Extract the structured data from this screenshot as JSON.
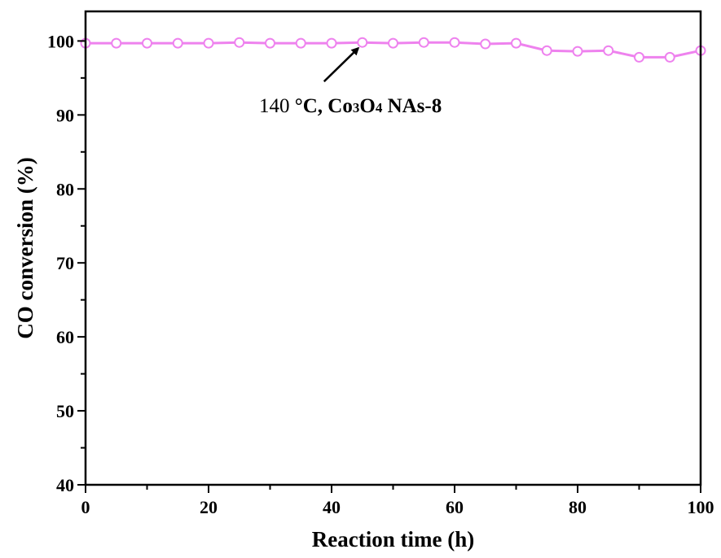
{
  "chart_data": {
    "type": "line",
    "title": "",
    "xlabel": "Reaction time (h)",
    "ylabel": "CO conversion (%)",
    "xlim": [
      0,
      100
    ],
    "ylim": [
      40,
      104
    ],
    "xticks": [
      0,
      20,
      40,
      60,
      80,
      100
    ],
    "yticks": [
      40,
      50,
      60,
      70,
      80,
      90,
      100
    ],
    "grid": false,
    "legend": "none",
    "series": [
      {
        "color": "#ee82ee",
        "marker": "open-circle",
        "x": [
          0,
          5,
          10,
          15,
          20,
          25,
          30,
          35,
          40,
          45,
          50,
          55,
          60,
          65,
          70,
          75,
          80,
          85,
          90,
          95,
          100
        ],
        "y": [
          99.7,
          99.7,
          99.7,
          99.7,
          99.7,
          99.8,
          99.7,
          99.7,
          99.7,
          99.8,
          99.7,
          99.8,
          99.8,
          99.6,
          99.7,
          98.7,
          98.6,
          98.7,
          97.8,
          97.8,
          98.7
        ]
      }
    ],
    "annotation": {
      "prefix": "140 ",
      "bold_a": "°C, Co",
      "sub_a": "3",
      "bold_b": "O",
      "sub_b": "4",
      "bold_c": " NAs-8",
      "points_to_x": 45,
      "points_to_y": 99.8
    }
  }
}
